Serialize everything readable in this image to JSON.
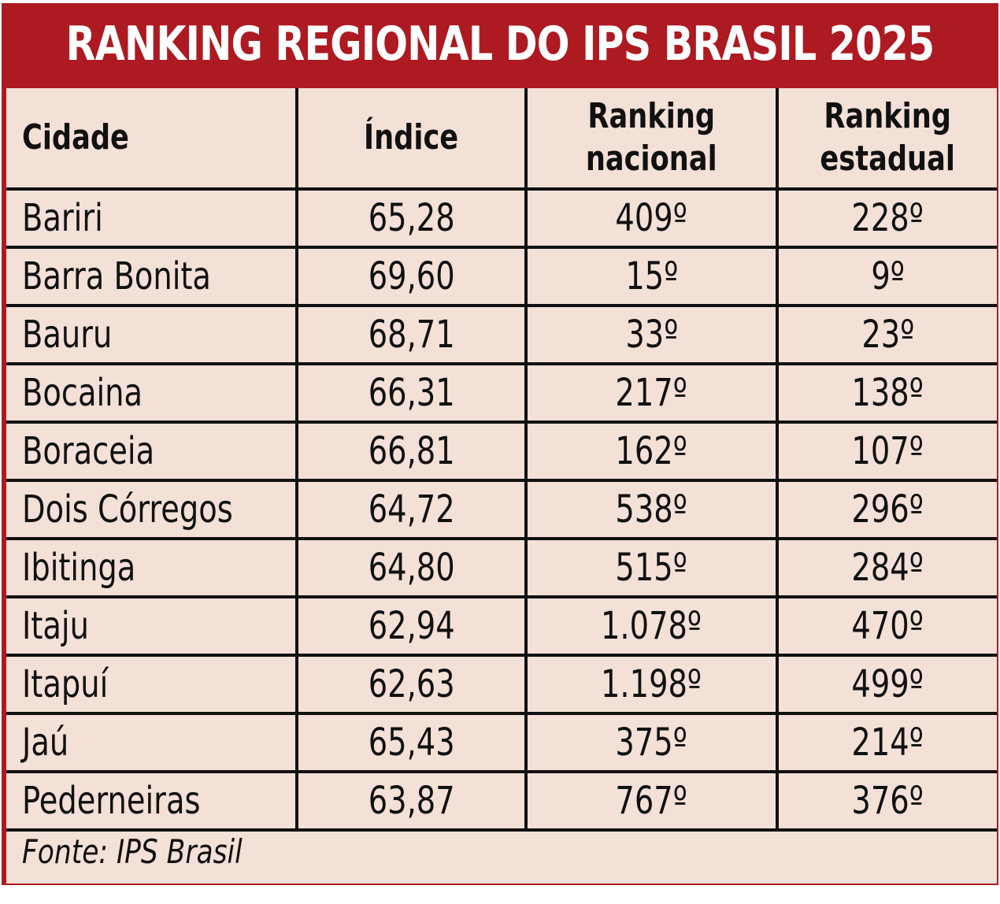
{
  "title": "RANKING REGIONAL DO IPS BRASIL 2025",
  "headers": {
    "cidade": "Cidade",
    "indice": "Índice",
    "ranking_nacional_1": "Ranking",
    "ranking_nacional_2": "nacional",
    "ranking_estadual_1": "Ranking",
    "ranking_estadual_2": "estadual"
  },
  "rows": [
    {
      "cidade": "Bariri",
      "indice": "65,28",
      "nacional": "409º",
      "estadual": "228º"
    },
    {
      "cidade": "Barra Bonita",
      "indice": "69,60",
      "nacional": "15º",
      "estadual": "9º"
    },
    {
      "cidade": "Bauru",
      "indice": "68,71",
      "nacional": "33º",
      "estadual": "23º"
    },
    {
      "cidade": "Bocaina",
      "indice": "66,31",
      "nacional": "217º",
      "estadual": "138º"
    },
    {
      "cidade": "Boraceia",
      "indice": "66,81",
      "nacional": "162º",
      "estadual": "107º"
    },
    {
      "cidade": "Dois Córregos",
      "indice": "64,72",
      "nacional": "538º",
      "estadual": "296º"
    },
    {
      "cidade": "Ibitinga",
      "indice": "64,80",
      "nacional": "515º",
      "estadual": "284º"
    },
    {
      "cidade": "Itaju",
      "indice": "62,94",
      "nacional": "1.078º",
      "estadual": "470º"
    },
    {
      "cidade": "Itapuí",
      "indice": "62,63",
      "nacional": "1.198º",
      "estadual": "499º"
    },
    {
      "cidade": "Jaú",
      "indice": "65,43",
      "nacional": "375º",
      "estadual": "214º"
    },
    {
      "cidade": "Pederneiras",
      "indice": "63,87",
      "nacional": "767º",
      "estadual": "376º"
    }
  ],
  "source": "Fonte: IPS Brasil",
  "colors": {
    "frame": "#ad1a22",
    "table_bg": "#f3e0d6",
    "text": "#111111",
    "title_text": "#ffffff"
  }
}
